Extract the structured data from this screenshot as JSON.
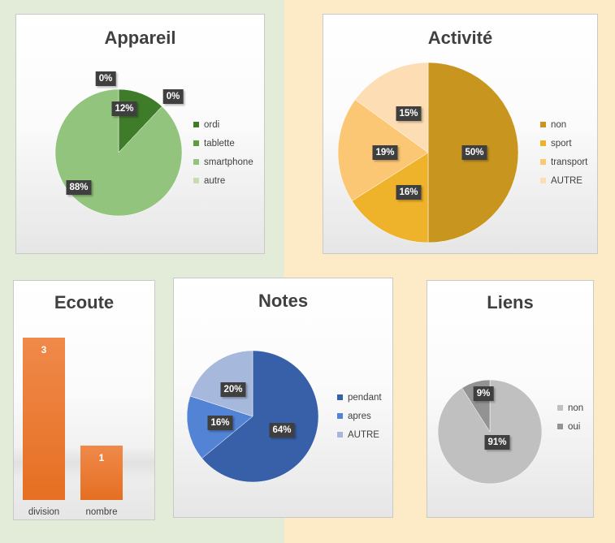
{
  "chart_data": [
    {
      "type": "pie",
      "title": "Appareil",
      "categories": [
        "ordi",
        "tablette",
        "smartphone",
        "autre"
      ],
      "values": [
        12,
        0,
        88,
        0
      ],
      "labels": [
        "12%",
        "0%",
        "88%",
        "0%"
      ],
      "colors": [
        "#3f7c2a",
        "#5b9d3f",
        "#93c47d",
        "#c5ddb3"
      ],
      "legend": "right"
    },
    {
      "type": "pie",
      "title": "Activité",
      "categories": [
        "non",
        "sport",
        "transport",
        "AUTRE"
      ],
      "values": [
        50,
        16,
        19,
        15
      ],
      "labels": [
        "50%",
        "16%",
        "19%",
        "15%"
      ],
      "colors": [
        "#c8961e",
        "#eeb22b",
        "#fbc774",
        "#fdddb3"
      ],
      "legend": "right"
    },
    {
      "type": "bar",
      "title": "Ecoute",
      "categories": [
        "division",
        "nombre"
      ],
      "values": [
        3,
        1
      ],
      "labels": [
        "3",
        "1"
      ],
      "colors": [
        "#ed7d31"
      ],
      "ylim": [
        0,
        3
      ],
      "grid": false
    },
    {
      "type": "pie",
      "title": "Notes",
      "categories": [
        "pendant",
        "apres",
        "AUTRE"
      ],
      "values": [
        64,
        16,
        20
      ],
      "labels": [
        "64%",
        "16%",
        "20%"
      ],
      "colors": [
        "#3760a8",
        "#5383d4",
        "#a6b8dc"
      ],
      "legend": "right"
    },
    {
      "type": "pie",
      "title": "Liens",
      "categories": [
        "non",
        "oui"
      ],
      "values": [
        91,
        9
      ],
      "labels": [
        "91%",
        "9%"
      ],
      "colors": [
        "#c0c0c0",
        "#939393"
      ],
      "legend": "right"
    }
  ]
}
